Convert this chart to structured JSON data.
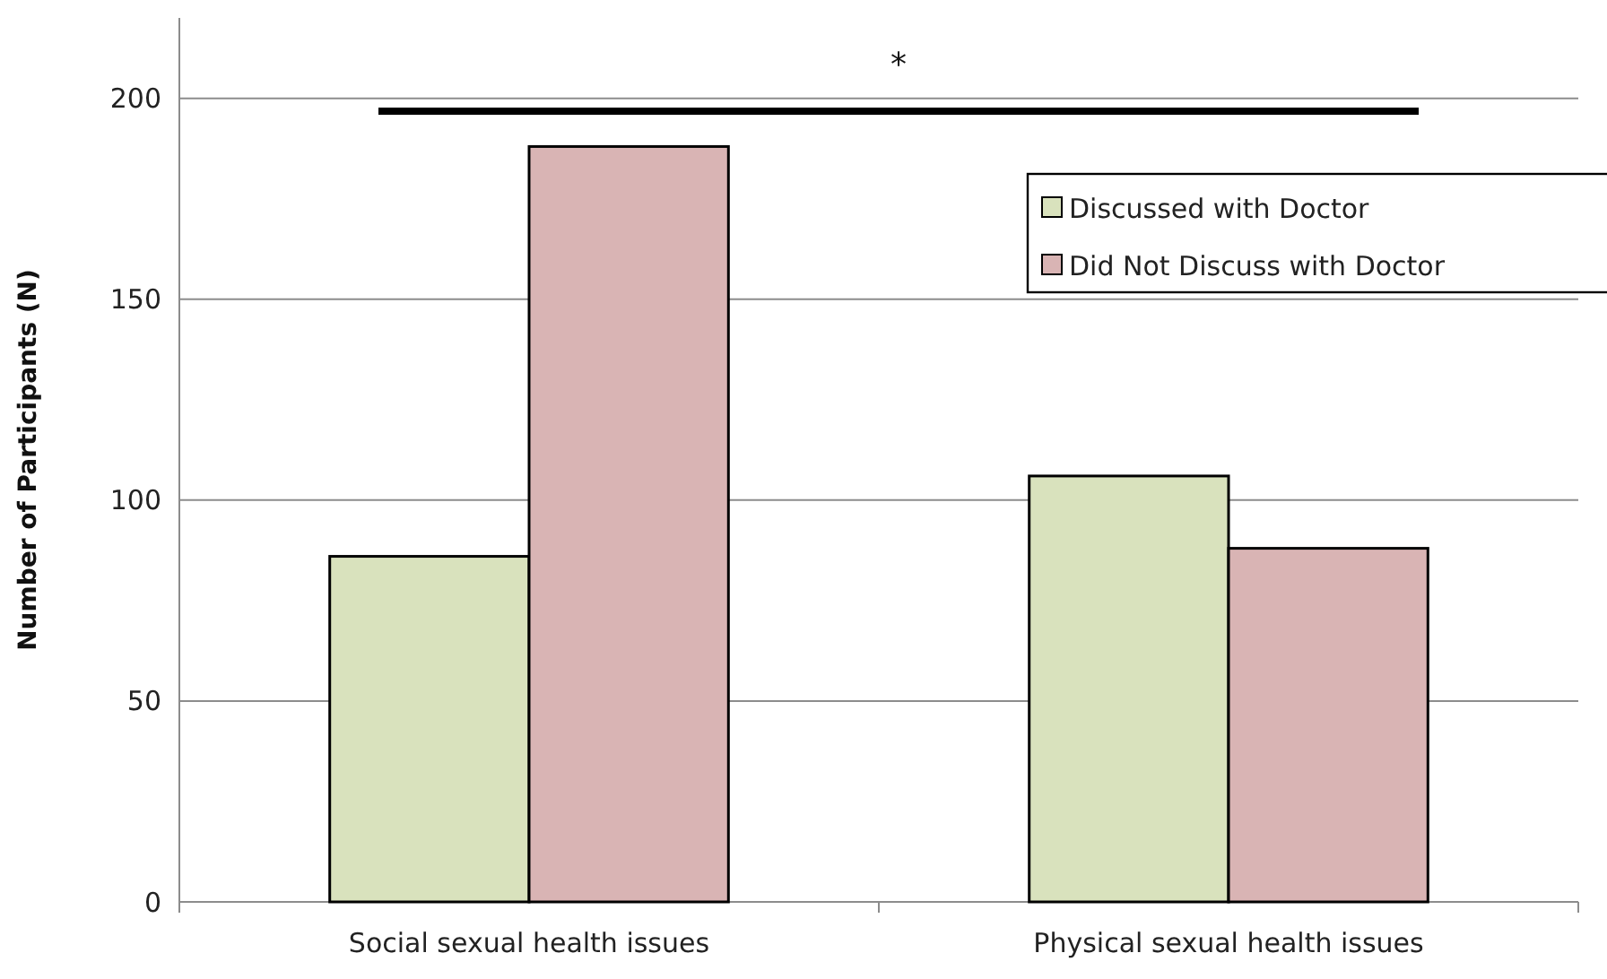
{
  "chart_data": {
    "type": "bar",
    "ylabel": "Number of Participants (N)",
    "categories": [
      "Social sexual health issues",
      "Physical sexual health issues"
    ],
    "series": [
      {
        "name": "Discussed with Doctor",
        "color": "#d9e2bd",
        "values": [
          86,
          106
        ]
      },
      {
        "name": "Did Not Discuss with Doctor",
        "color": "#d9b4b4",
        "values": [
          188,
          88
        ]
      }
    ],
    "ylim": [
      0,
      220
    ],
    "yticks": [
      0,
      50,
      100,
      150,
      200
    ],
    "grid": "y",
    "legend": "top right",
    "annotations": [
      "*"
    ]
  }
}
